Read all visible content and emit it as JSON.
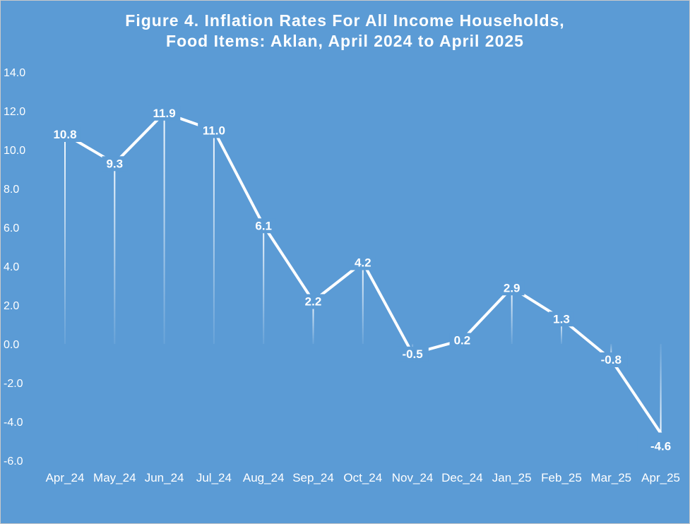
{
  "chart_data": {
    "type": "line",
    "title_line1": "Figure 4. Inflation Rates For All Income Households,",
    "title_line2": "Food Items: Aklan, April 2024 to April 2025",
    "categories": [
      "Apr_24",
      "May_24",
      "Jun_24",
      "Jul_24",
      "Aug_24",
      "Sep_24",
      "Oct_24",
      "Nov_24",
      "Dec_24",
      "Jan_25",
      "Feb_25",
      "Mar_25",
      "Apr_25"
    ],
    "values": [
      10.8,
      9.3,
      11.9,
      11.0,
      6.1,
      2.2,
      4.2,
      -0.5,
      0.2,
      2.9,
      1.3,
      -0.8,
      -4.6
    ],
    "data_labels": [
      "10.8",
      "9.3",
      "11.9",
      "11.0",
      "6.1",
      "2.2",
      "4.2",
      "-0.5",
      "0.2",
      "2.9",
      "1.3",
      "-0.8",
      "-4.6"
    ],
    "yticks": [
      "14.0",
      "12.0",
      "10.0",
      "8.0",
      "6.0",
      "4.0",
      "2.0",
      "0.0",
      "-2.0",
      "-4.0",
      "-6.0"
    ],
    "ylim": [
      -6,
      14
    ],
    "grid": false,
    "legend": "none",
    "colors": {
      "background": "#5b9bd5",
      "line": "#ffffff",
      "highlight_label": "#ffff00"
    }
  }
}
